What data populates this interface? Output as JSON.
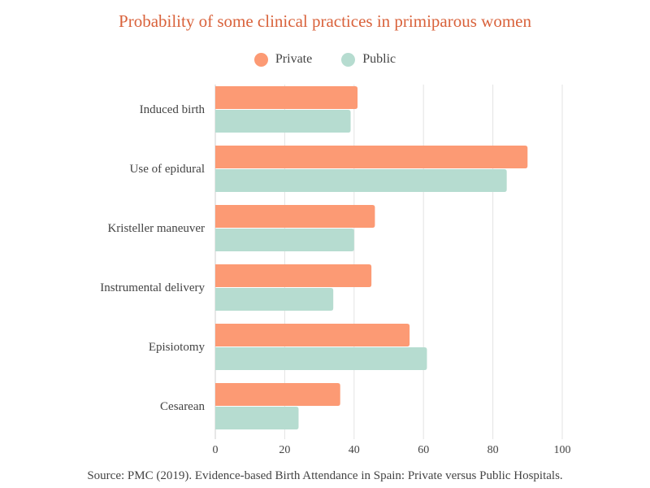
{
  "chart_data": {
    "type": "bar",
    "orientation": "horizontal",
    "title": "Probability of some clinical practices in primiparous women",
    "categories": [
      "Induced birth",
      "Use of epidural",
      "Kristeller maneuver",
      "Instrumental delivery",
      "Episiotomy",
      "Cesarean"
    ],
    "series": [
      {
        "name": "Private",
        "color": "#fc9a74",
        "values": [
          41,
          90,
          46,
          45,
          56,
          36
        ]
      },
      {
        "name": "Public",
        "color": "#b6dcd0",
        "values": [
          39,
          84,
          40,
          34,
          61,
          24
        ]
      }
    ],
    "xlim": [
      0,
      100
    ],
    "xticks": [
      0,
      20,
      40,
      60,
      80,
      100
    ],
    "grid": true,
    "legend_position": "top-center",
    "source": "Source: PMC (2019). Evidence-based Birth Attendance in Spain: Private versus Public Hospitals."
  }
}
